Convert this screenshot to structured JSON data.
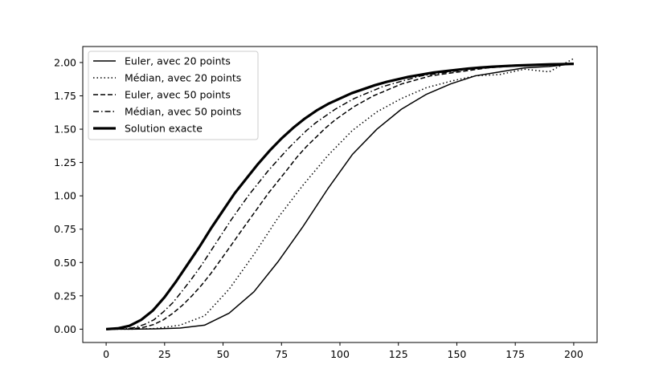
{
  "chart_data": {
    "type": "line",
    "title": "",
    "xlabel": "",
    "ylabel": "",
    "xlim": [
      -10,
      210
    ],
    "ylim": [
      -0.1,
      2.12
    ],
    "x_ticks": [
      0,
      25,
      50,
      75,
      100,
      125,
      150,
      175,
      200
    ],
    "x_tick_labels": [
      "0",
      "25",
      "50",
      "75",
      "100",
      "125",
      "150",
      "175",
      "200"
    ],
    "y_ticks": [
      0,
      0.25,
      0.5,
      0.75,
      1.0,
      1.25,
      1.5,
      1.75,
      2.0
    ],
    "y_tick_labels": [
      "0.00",
      "0.25",
      "0.50",
      "0.75",
      "1.00",
      "1.25",
      "1.50",
      "1.75",
      "2.00"
    ],
    "grid": false,
    "legend_position": "top-left",
    "series": [
      {
        "name": "Euler, avec 20 points",
        "style": "solid",
        "stroke_width": 1.5,
        "color": "#000000",
        "x": [
          0,
          10.5,
          21,
          31.6,
          42.1,
          52.6,
          63.2,
          73.7,
          84.2,
          94.7,
          105.3,
          115.8,
          126.3,
          136.8,
          147.4,
          157.9,
          168.4,
          178.9,
          189.5,
          200
        ],
        "y": [
          0,
          0,
          0.002,
          0.008,
          0.03,
          0.12,
          0.28,
          0.51,
          0.77,
          1.05,
          1.31,
          1.5,
          1.65,
          1.76,
          1.84,
          1.9,
          1.93,
          1.96,
          1.97,
          1.99
        ]
      },
      {
        "name": "Médian, avec 20 points",
        "style": "dotted",
        "stroke_width": 1.5,
        "color": "#000000",
        "x": [
          0,
          10.5,
          21,
          31.6,
          42.1,
          52.6,
          63.2,
          73.7,
          84.2,
          94.7,
          105.3,
          115.8,
          126.3,
          136.8,
          147.4,
          157.9,
          168.4,
          178.9,
          189.5,
          200
        ],
        "y": [
          0,
          0,
          0.005,
          0.03,
          0.1,
          0.3,
          0.56,
          0.84,
          1.08,
          1.3,
          1.49,
          1.63,
          1.73,
          1.81,
          1.86,
          1.9,
          1.91,
          1.95,
          1.93,
          2.03
        ]
      },
      {
        "name": "Euler, avec 50 points",
        "style": "dashed",
        "stroke_width": 1.5,
        "color": "#000000",
        "x": [
          0,
          4.1,
          8.2,
          12.2,
          16.3,
          20.4,
          24.5,
          28.6,
          32.7,
          36.7,
          40.8,
          44.9,
          49,
          53.1,
          57.1,
          61.2,
          65.3,
          69.4,
          73.5,
          77.6,
          81.6,
          85.7,
          89.8,
          93.9,
          98,
          102,
          106.1,
          110.2,
          114.3,
          118.4,
          122.4,
          126.5,
          130.6,
          134.7,
          138.8,
          142.9,
          146.9,
          151,
          155.1,
          159.2,
          163.3,
          167.3,
          171.4,
          175.5,
          179.6,
          183.7,
          187.8,
          191.8,
          195.9,
          200
        ],
        "y": [
          0,
          0,
          0.001,
          0.005,
          0.015,
          0.035,
          0.07,
          0.12,
          0.18,
          0.25,
          0.33,
          0.42,
          0.52,
          0.62,
          0.72,
          0.82,
          0.92,
          1.02,
          1.11,
          1.2,
          1.29,
          1.37,
          1.44,
          1.51,
          1.57,
          1.62,
          1.67,
          1.71,
          1.75,
          1.78,
          1.81,
          1.84,
          1.86,
          1.88,
          1.9,
          1.91,
          1.92,
          1.93,
          1.94,
          1.95,
          1.96,
          1.965,
          1.97,
          1.975,
          1.98,
          1.983,
          1.986,
          1.988,
          1.99,
          1.992
        ]
      },
      {
        "name": "Médian, avec 50 points",
        "style": "dashdot",
        "stroke_width": 1.5,
        "color": "#000000",
        "x": [
          0,
          4.1,
          8.2,
          12.2,
          16.3,
          20.4,
          24.5,
          28.6,
          32.7,
          36.7,
          40.8,
          44.9,
          49,
          53.1,
          57.1,
          61.2,
          65.3,
          69.4,
          73.5,
          77.6,
          81.6,
          85.7,
          89.8,
          93.9,
          98,
          102,
          106.1,
          110.2,
          114.3,
          118.4,
          122.4,
          126.5,
          130.6,
          134.7,
          138.8,
          142.9,
          146.9,
          151,
          155.1,
          159.2,
          163.3,
          167.3,
          171.4,
          175.5,
          179.6,
          183.7,
          187.8,
          191.8,
          195.9,
          200
        ],
        "y": [
          0,
          0,
          0.003,
          0.012,
          0.035,
          0.07,
          0.13,
          0.2,
          0.29,
          0.38,
          0.48,
          0.59,
          0.7,
          0.81,
          0.91,
          1.01,
          1.1,
          1.19,
          1.27,
          1.35,
          1.42,
          1.49,
          1.55,
          1.6,
          1.65,
          1.69,
          1.73,
          1.76,
          1.79,
          1.82,
          1.84,
          1.86,
          1.88,
          1.9,
          1.91,
          1.92,
          1.93,
          1.94,
          1.95,
          1.96,
          1.965,
          1.97,
          1.975,
          1.98,
          1.983,
          1.986,
          1.988,
          1.99,
          1.992,
          1.994
        ]
      },
      {
        "name": "Solution exacte",
        "style": "solid",
        "stroke_width": 3.2,
        "color": "#000000",
        "x": [
          0,
          5,
          10,
          15,
          20,
          25,
          30,
          35,
          40,
          45,
          50,
          55,
          60,
          65,
          70,
          75,
          80,
          85,
          90,
          95,
          100,
          105,
          110,
          115,
          120,
          125,
          130,
          135,
          140,
          145,
          150,
          155,
          160,
          165,
          170,
          175,
          180,
          185,
          190,
          195,
          200
        ],
        "y": [
          0,
          0.006,
          0.025,
          0.07,
          0.14,
          0.24,
          0.36,
          0.49,
          0.62,
          0.76,
          0.89,
          1.02,
          1.13,
          1.24,
          1.34,
          1.43,
          1.51,
          1.58,
          1.64,
          1.69,
          1.73,
          1.77,
          1.8,
          1.83,
          1.855,
          1.875,
          1.895,
          1.91,
          1.925,
          1.935,
          1.945,
          1.955,
          1.962,
          1.968,
          1.973,
          1.977,
          1.98,
          1.983,
          1.986,
          1.988,
          1.99
        ]
      }
    ]
  }
}
